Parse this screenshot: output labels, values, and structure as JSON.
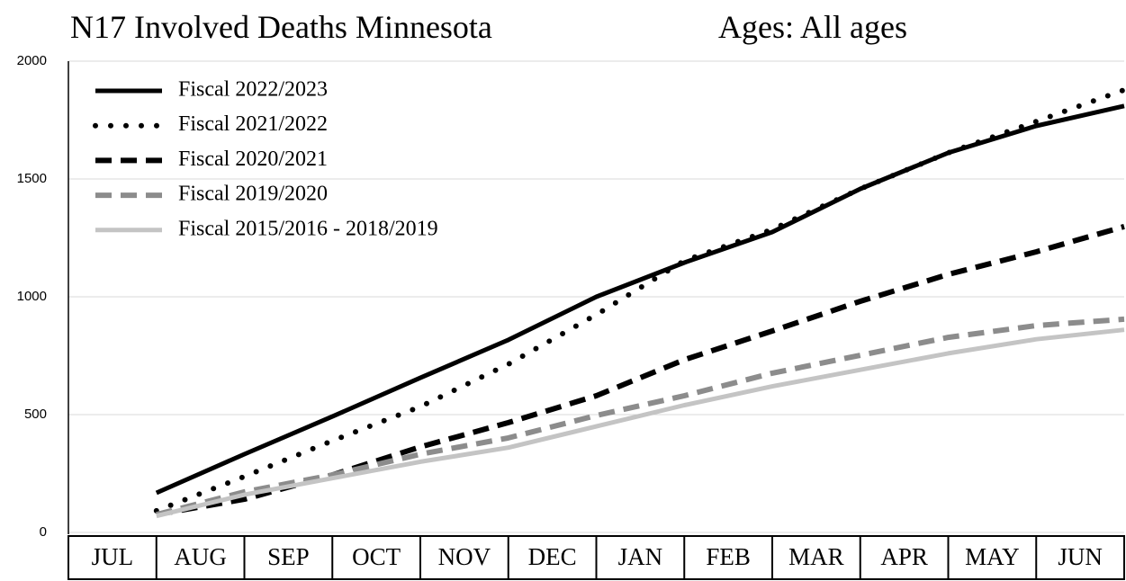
{
  "chart_data": {
    "type": "line",
    "title": "N17 Involved Deaths Minnesota",
    "subtitle": "Ages:  All ages",
    "categories": [
      "JUL",
      "AUG",
      "SEP",
      "OCT",
      "NOV",
      "DEC",
      "JAN",
      "FEB",
      "MAR",
      "APR",
      "MAY",
      "JUN"
    ],
    "series": [
      {
        "name": "Fiscal 2022/2023",
        "color": "#000000",
        "style": "solid",
        "values": [
          168,
          332,
          492,
          656,
          817,
          1000,
          1145,
          1275,
          1458,
          1611,
          1725,
          1810
        ]
      },
      {
        "name": "Fiscal 2021/2022",
        "color": "#000000",
        "style": "dotted",
        "values": [
          92,
          237,
          389,
          534,
          714,
          924,
          1153,
          1286,
          1458,
          1611,
          1744,
          1878
        ]
      },
      {
        "name": "Fiscal 2020/2021",
        "color": "#000000",
        "style": "dashed",
        "values": [
          76,
          141,
          244,
          363,
          466,
          580,
          733,
          855,
          981,
          1095,
          1191,
          1298
        ]
      },
      {
        "name": "Fiscal 2019/2020",
        "color": "#8c8c8c",
        "style": "dashed",
        "values": [
          76,
          172,
          244,
          332,
          401,
          496,
          580,
          676,
          752,
          828,
          878,
          905
        ]
      },
      {
        "name": "Fiscal 2015/2016 - 2018/2019",
        "color": "#c4c4c4",
        "style": "solid",
        "values": [
          70,
          160,
          230,
          300,
          360,
          450,
          540,
          620,
          690,
          760,
          820,
          860
        ]
      }
    ],
    "ylim": [
      0,
      2000
    ],
    "yticks": [
      0,
      500,
      1000,
      1500,
      2000
    ],
    "grid": true,
    "legend": "upper left"
  }
}
